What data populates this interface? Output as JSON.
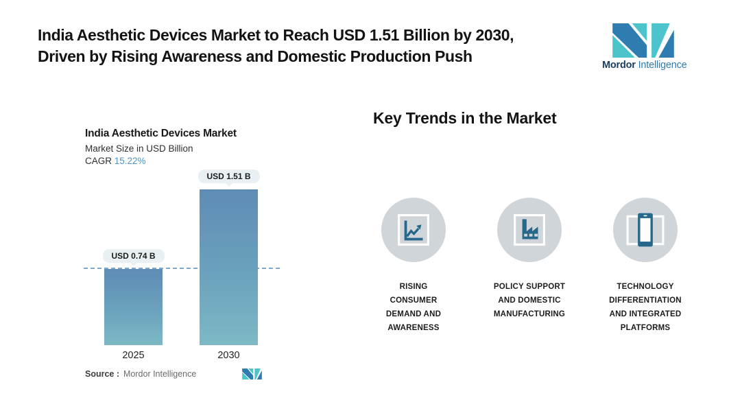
{
  "header": {
    "title": "India Aesthetic Devices Market to Reach USD 1.51 Billion by 2030,\nDriven by Rising Awareness and Domestic Production Push",
    "brand": {
      "name_bold": "Mordor",
      "name_regular": "Intelligence"
    }
  },
  "chart": {
    "title": "India Aesthetic Devices Market",
    "subtitle": "Market Size in USD Billion",
    "cagr_label": "CAGR ",
    "cagr_value": "15.22%",
    "source_label": "Source :",
    "source_value": "Mordor Intelligence"
  },
  "chart_data": {
    "type": "bar",
    "categories": [
      "2025",
      "2030"
    ],
    "values": [
      0.74,
      1.51
    ],
    "value_labels": [
      "USD 0.74 B",
      "USD 1.51 B"
    ],
    "title": "India Aesthetic Devices Market",
    "ylabel": "Market Size in USD Billion",
    "cagr": "15.22%",
    "ylim": [
      0,
      1.7
    ],
    "grid": false,
    "annotations": [
      "horizontal dashed reference line at 2025 value (USD 0.74 B)"
    ]
  },
  "trends": {
    "heading": "Key Trends in the Market",
    "items": [
      {
        "icon": "line-chart-icon",
        "label": "RISING\nCONSUMER\nDEMAND AND\nAWARENESS"
      },
      {
        "icon": "factory-icon",
        "label": "POLICY SUPPORT\nAND DOMESTIC\nMANUFACTURING"
      },
      {
        "icon": "smartphone-icon",
        "label": "TECHNOLOGY\nDIFFERENTIATION\nAND INTEGRATED\nPLATFORMS"
      }
    ]
  },
  "colors": {
    "brand_teal": "#4BC5CB",
    "brand_blue": "#2E7CB0",
    "brand_navy": "#1B3C63",
    "bar_top": "#5E8CB5",
    "bar_bottom": "#7DB9C5",
    "dash_line": "#7FA8CD",
    "cagr_value": "#4A94C8",
    "pill_bg": "#E9F0F3",
    "circle_bg": "#D0D5DA",
    "icon_blue": "#26688C"
  }
}
